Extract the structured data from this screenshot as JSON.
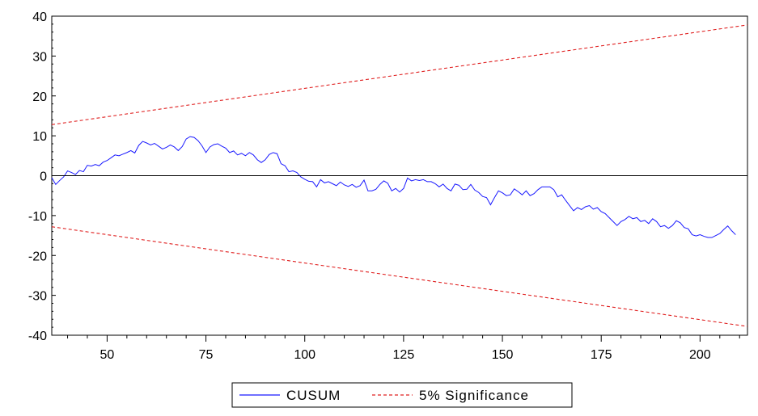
{
  "chart_data": {
    "type": "line",
    "title": "",
    "xlabel": "",
    "ylabel": "",
    "xlim": [
      36,
      212
    ],
    "ylim": [
      -40,
      40
    ],
    "x_ticks": [
      50,
      75,
      100,
      125,
      150,
      175,
      200
    ],
    "x_tick_labels": [
      "50",
      "75",
      "100",
      "125",
      "150",
      "175",
      "200"
    ],
    "y_ticks": [
      40,
      30,
      20,
      10,
      0,
      -10,
      -20,
      -30,
      -40
    ],
    "y_tick_labels": [
      "40",
      "30",
      "20",
      "10",
      "0",
      "-10",
      "-20",
      "-30",
      "-40"
    ],
    "grid": false,
    "zero_line": true,
    "legend_position": "bottom-center",
    "legend": [
      "CUSUM",
      "5% Significance"
    ],
    "colors": {
      "cusum": "#1a1aff",
      "significance": "#e02020",
      "axis": "#000000"
    },
    "series": [
      {
        "name": "CUSUM",
        "style": "solid",
        "points": [
          [
            36,
            -0.5
          ],
          [
            37,
            -2.2
          ],
          [
            38,
            -1.2
          ],
          [
            39,
            -0.3
          ],
          [
            40,
            1.2
          ],
          [
            41,
            0.8
          ],
          [
            42,
            0.3
          ],
          [
            43,
            1.3
          ],
          [
            44,
            1.0
          ],
          [
            45,
            2.6
          ],
          [
            46,
            2.4
          ],
          [
            47,
            2.8
          ],
          [
            48,
            2.5
          ],
          [
            49,
            3.4
          ],
          [
            50,
            3.8
          ],
          [
            51,
            4.5
          ],
          [
            52,
            5.2
          ],
          [
            53,
            5.0
          ],
          [
            54,
            5.4
          ],
          [
            55,
            5.8
          ],
          [
            56,
            6.3
          ],
          [
            57,
            5.7
          ],
          [
            58,
            7.6
          ],
          [
            59,
            8.6
          ],
          [
            60,
            8.2
          ],
          [
            61,
            7.7
          ],
          [
            62,
            8.1
          ],
          [
            63,
            7.4
          ],
          [
            64,
            6.7
          ],
          [
            65,
            7.1
          ],
          [
            66,
            7.7
          ],
          [
            67,
            7.2
          ],
          [
            68,
            6.3
          ],
          [
            69,
            7.3
          ],
          [
            70,
            9.2
          ],
          [
            71,
            9.8
          ],
          [
            72,
            9.6
          ],
          [
            73,
            8.8
          ],
          [
            74,
            7.5
          ],
          [
            75,
            5.8
          ],
          [
            76,
            7.2
          ],
          [
            77,
            7.8
          ],
          [
            78,
            8.0
          ],
          [
            79,
            7.4
          ],
          [
            80,
            6.9
          ],
          [
            81,
            5.8
          ],
          [
            82,
            6.2
          ],
          [
            83,
            5.2
          ],
          [
            84,
            5.6
          ],
          [
            85,
            5.0
          ],
          [
            86,
            5.8
          ],
          [
            87,
            5.2
          ],
          [
            88,
            4.0
          ],
          [
            89,
            3.3
          ],
          [
            90,
            4.0
          ],
          [
            91,
            5.3
          ],
          [
            92,
            5.8
          ],
          [
            93,
            5.5
          ],
          [
            94,
            3.0
          ],
          [
            95,
            2.5
          ],
          [
            96,
            1.0
          ],
          [
            97,
            1.2
          ],
          [
            98,
            0.8
          ],
          [
            99,
            -0.3
          ],
          [
            100,
            -0.9
          ],
          [
            101,
            -1.4
          ],
          [
            102,
            -1.5
          ],
          [
            103,
            -2.8
          ],
          [
            104,
            -1.0
          ],
          [
            105,
            -1.8
          ],
          [
            106,
            -1.5
          ],
          [
            107,
            -2.0
          ],
          [
            108,
            -2.5
          ],
          [
            109,
            -1.6
          ],
          [
            110,
            -2.3
          ],
          [
            111,
            -2.7
          ],
          [
            112,
            -2.2
          ],
          [
            113,
            -2.9
          ],
          [
            114,
            -2.5
          ],
          [
            115,
            -1.1
          ],
          [
            116,
            -3.8
          ],
          [
            117,
            -3.8
          ],
          [
            118,
            -3.4
          ],
          [
            119,
            -2.2
          ],
          [
            120,
            -1.3
          ],
          [
            121,
            -1.9
          ],
          [
            122,
            -3.8
          ],
          [
            123,
            -3.2
          ],
          [
            124,
            -4.1
          ],
          [
            125,
            -3.2
          ],
          [
            126,
            -0.6
          ],
          [
            127,
            -1.3
          ],
          [
            128,
            -1.0
          ],
          [
            129,
            -1.2
          ],
          [
            130,
            -1.0
          ],
          [
            131,
            -1.5
          ],
          [
            132,
            -1.5
          ],
          [
            133,
            -2.0
          ],
          [
            134,
            -2.8
          ],
          [
            135,
            -2.1
          ],
          [
            136,
            -3.2
          ],
          [
            137,
            -3.8
          ],
          [
            138,
            -2.1
          ],
          [
            139,
            -2.4
          ],
          [
            140,
            -3.5
          ],
          [
            141,
            -3.4
          ],
          [
            142,
            -2.2
          ],
          [
            143,
            -3.6
          ],
          [
            144,
            -4.2
          ],
          [
            145,
            -5.2
          ],
          [
            146,
            -5.5
          ],
          [
            147,
            -7.3
          ],
          [
            148,
            -5.5
          ],
          [
            149,
            -3.8
          ],
          [
            150,
            -4.3
          ],
          [
            151,
            -5.0
          ],
          [
            152,
            -4.8
          ],
          [
            153,
            -3.3
          ],
          [
            154,
            -4.0
          ],
          [
            155,
            -4.8
          ],
          [
            156,
            -3.8
          ],
          [
            157,
            -5.0
          ],
          [
            158,
            -4.5
          ],
          [
            159,
            -3.5
          ],
          [
            160,
            -2.8
          ],
          [
            161,
            -2.8
          ],
          [
            162,
            -2.8
          ],
          [
            163,
            -3.5
          ],
          [
            164,
            -5.3
          ],
          [
            165,
            -4.8
          ],
          [
            166,
            -6.2
          ],
          [
            167,
            -7.5
          ],
          [
            168,
            -8.8
          ],
          [
            169,
            -8.0
          ],
          [
            170,
            -8.5
          ],
          [
            171,
            -7.8
          ],
          [
            172,
            -7.5
          ],
          [
            173,
            -8.4
          ],
          [
            174,
            -8.0
          ],
          [
            175,
            -9.0
          ],
          [
            176,
            -9.5
          ],
          [
            177,
            -10.5
          ],
          [
            178,
            -11.5
          ],
          [
            179,
            -12.5
          ],
          [
            180,
            -11.5
          ],
          [
            181,
            -11.0
          ],
          [
            182,
            -10.2
          ],
          [
            183,
            -10.8
          ],
          [
            184,
            -10.5
          ],
          [
            185,
            -11.5
          ],
          [
            186,
            -11.2
          ],
          [
            187,
            -12.0
          ],
          [
            188,
            -10.8
          ],
          [
            189,
            -11.5
          ],
          [
            190,
            -12.8
          ],
          [
            191,
            -12.5
          ],
          [
            192,
            -13.2
          ],
          [
            193,
            -12.5
          ],
          [
            194,
            -11.3
          ],
          [
            195,
            -11.8
          ],
          [
            196,
            -13.0
          ],
          [
            197,
            -13.3
          ],
          [
            198,
            -14.8
          ],
          [
            199,
            -15.1
          ],
          [
            200,
            -14.8
          ],
          [
            201,
            -15.2
          ],
          [
            202,
            -15.5
          ],
          [
            203,
            -15.5
          ],
          [
            204,
            -15.0
          ],
          [
            205,
            -14.5
          ],
          [
            206,
            -13.5
          ],
          [
            207,
            -12.6
          ],
          [
            208,
            -13.8
          ],
          [
            209,
            -14.8
          ]
        ]
      },
      {
        "name": "5% Significance",
        "style": "dashed",
        "points": [
          [
            36,
            12.8
          ],
          [
            212,
            37.8
          ]
        ]
      },
      {
        "name": "5% Significance",
        "style": "dashed",
        "legend": false,
        "points": [
          [
            36,
            -12.8
          ],
          [
            212,
            -37.8
          ]
        ]
      }
    ]
  }
}
